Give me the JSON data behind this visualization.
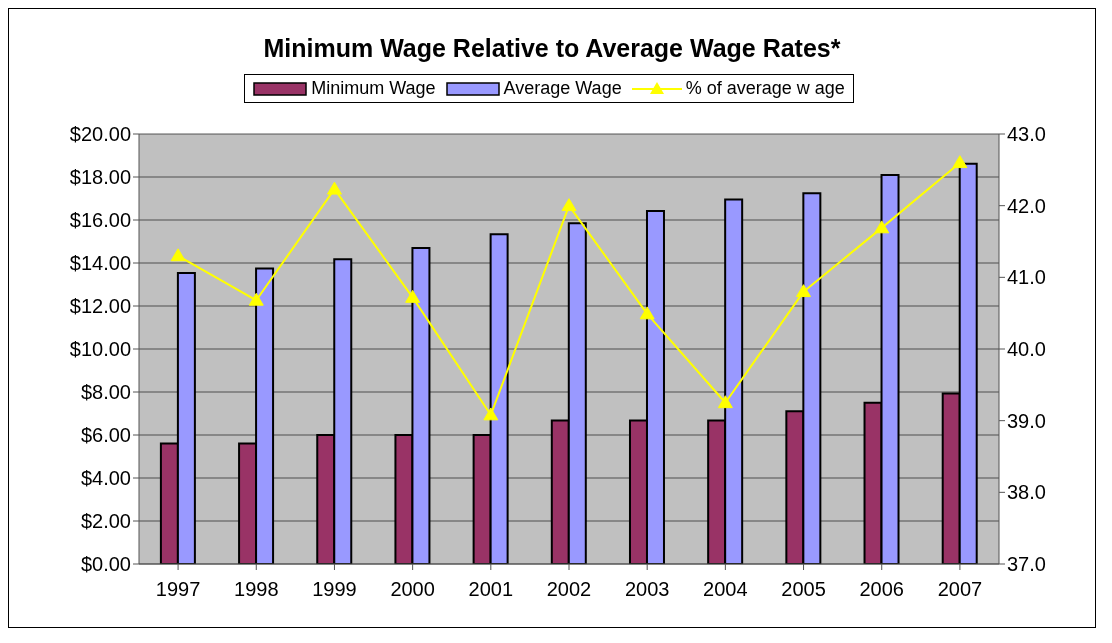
{
  "chart_data": {
    "type": "bar",
    "title": "Minimum Wage Relative to Average Wage Rates*",
    "categories": [
      "1997",
      "1998",
      "1999",
      "2000",
      "2001",
      "2002",
      "2003",
      "2004",
      "2005",
      "2006",
      "2007"
    ],
    "series": [
      {
        "name": "Minimum Wage",
        "color": "#993366",
        "values": [
          5.61,
          5.61,
          6.0,
          6.0,
          6.0,
          6.67,
          6.67,
          6.67,
          7.1,
          7.5,
          7.93
        ]
      },
      {
        "name": "Average Wage",
        "color": "#9999ff",
        "values": [
          13.54,
          13.75,
          14.17,
          14.7,
          15.34,
          15.85,
          16.42,
          16.95,
          17.25,
          18.09,
          18.62
        ]
      },
      {
        "name": "% of average w age",
        "type": "line",
        "axis": "y2",
        "color": "#ffff00",
        "marker": "triangle",
        "values": [
          41.3,
          40.68,
          42.23,
          40.72,
          39.08,
          42.0,
          40.49,
          39.25,
          40.8,
          41.69,
          42.6
        ]
      }
    ],
    "ylim": [
      0,
      20
    ],
    "yticks": [
      {
        "value": 0,
        "label": "$0.00"
      },
      {
        "value": 2,
        "label": "$2.00"
      },
      {
        "value": 4,
        "label": "$4.00"
      },
      {
        "value": 6,
        "label": "$6.00"
      },
      {
        "value": 8,
        "label": "$8.00"
      },
      {
        "value": 10,
        "label": "$10.00"
      },
      {
        "value": 12,
        "label": "$12.00"
      },
      {
        "value": 14,
        "label": "$14.00"
      },
      {
        "value": 16,
        "label": "$16.00"
      },
      {
        "value": 18,
        "label": "$18.00"
      },
      {
        "value": 20,
        "label": "$20.00"
      }
    ],
    "y2lim": [
      37,
      43
    ],
    "y2ticks": [
      {
        "value": 37,
        "label": "37.0"
      },
      {
        "value": 38,
        "label": "38.0"
      },
      {
        "value": 39,
        "label": "39.0"
      },
      {
        "value": 40,
        "label": "40.0"
      },
      {
        "value": 41,
        "label": "41.0"
      },
      {
        "value": 42,
        "label": "42.0"
      },
      {
        "value": 43,
        "label": "43.0"
      }
    ],
    "grid": "y",
    "legend": "top"
  }
}
